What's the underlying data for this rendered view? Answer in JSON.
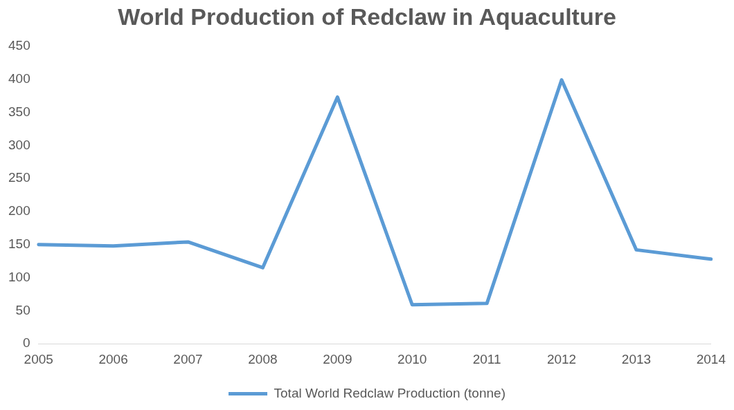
{
  "chart_data": {
    "type": "line",
    "title": "World Production of Redclaw in Aquaculture",
    "categories": [
      "2005",
      "2006",
      "2007",
      "2008",
      "2009",
      "2010",
      "2011",
      "2012",
      "2013",
      "2014"
    ],
    "series": [
      {
        "name": "Total World Redclaw Production (tonne)",
        "color": "#5b9bd5",
        "values": [
          150,
          148,
          154,
          115,
          373,
          59,
          61,
          399,
          142,
          128
        ]
      }
    ],
    "ylim": [
      0,
      450
    ],
    "yticks": [
      0,
      50,
      100,
      150,
      200,
      250,
      300,
      350,
      400,
      450
    ],
    "grid": false,
    "legend": "bottom",
    "marker": "none",
    "line_style": "solid"
  }
}
